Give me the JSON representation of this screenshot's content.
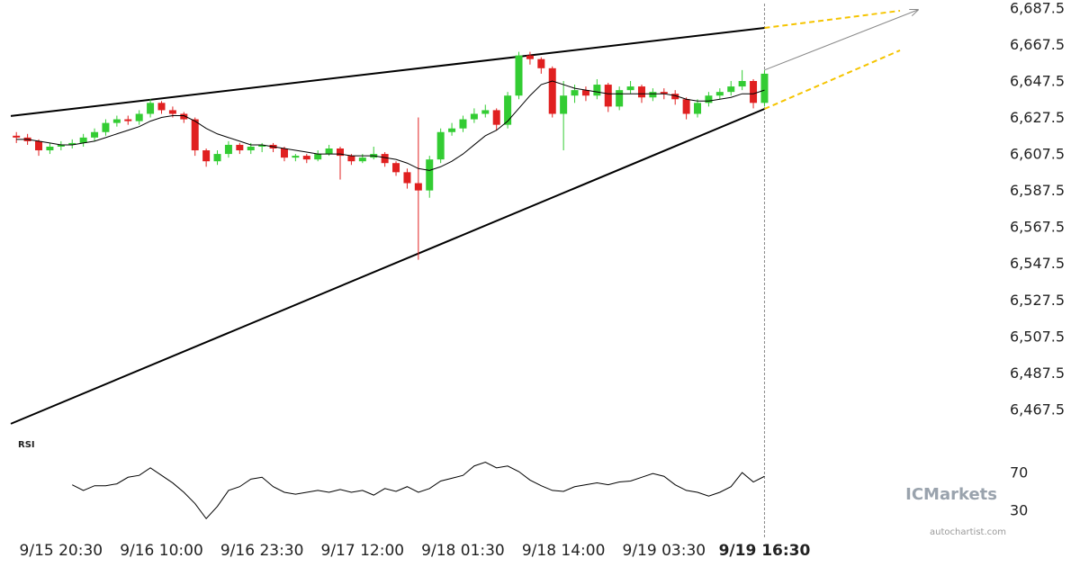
{
  "chart_data": {
    "type": "candlestick",
    "up_color": "#33cc33",
    "down_color": "#e02020",
    "xlim": [
      -6.75,
      126
    ],
    "xticks": [
      {
        "value": 0,
        "label": "9/15 20:30"
      },
      {
        "value": 13.5,
        "label": "9/16 10:00"
      },
      {
        "value": 27,
        "label": "9/16 23:30"
      },
      {
        "value": 40.5,
        "label": "9/17 12:00"
      },
      {
        "value": 54,
        "label": "9/18 01:30"
      },
      {
        "value": 67.5,
        "label": "9/18 14:00"
      },
      {
        "value": 81,
        "label": "9/19 03:30"
      },
      {
        "value": 94.5,
        "label": "9/19 16:30"
      }
    ],
    "ylim": [
      6455.6,
      6692.4
    ],
    "yticks": [
      {
        "value": 6687.5,
        "label": "6,687.5"
      },
      {
        "value": 6667.5,
        "label": "6,667.5"
      },
      {
        "value": 6647.5,
        "label": "6,647.5"
      },
      {
        "value": 6627.5,
        "label": "6,627.5"
      },
      {
        "value": 6607.5,
        "label": "6,607.5"
      },
      {
        "value": 6587.5,
        "label": "6,587.5"
      },
      {
        "value": 6567.5,
        "label": "6,567.5"
      },
      {
        "value": 6547.5,
        "label": "6,547.5"
      },
      {
        "value": 6527.5,
        "label": "6,527.5"
      },
      {
        "value": 6507.5,
        "label": "6,507.5"
      },
      {
        "value": 6487.5,
        "label": "6,487.5"
      },
      {
        "value": 6467.5,
        "label": "6,467.5"
      }
    ],
    "x": [
      -6,
      -4.5,
      -3,
      -1.5,
      0,
      1.5,
      3,
      4.5,
      6,
      7.5,
      9,
      10.5,
      12,
      13.5,
      15,
      16.5,
      18,
      19.5,
      21,
      22.5,
      24,
      25.5,
      27,
      28.5,
      30,
      31.5,
      33,
      34.5,
      36,
      37.5,
      39,
      40.5,
      42,
      43.5,
      45,
      46.5,
      48,
      49.5,
      51,
      52.5,
      54,
      55.5,
      57,
      58.5,
      60,
      61.5,
      63,
      64.5,
      66,
      67.5,
      69,
      70.5,
      72,
      73.5,
      75,
      76.5,
      78,
      79.5,
      81,
      82.5,
      84,
      85.5,
      87,
      88.5,
      90,
      91.5,
      93,
      94.5
    ],
    "open": [
      6618,
      6617,
      6615,
      6610,
      6612,
      6613,
      6614,
      6617,
      6620,
      6625,
      6627,
      6626,
      6630,
      6636,
      6632,
      6630,
      6627,
      6610,
      6604,
      6608,
      6613,
      6610,
      6612,
      6613,
      6611,
      6606,
      6607,
      6605,
      6608,
      6611,
      6607,
      6604,
      6606,
      6608,
      6603,
      6598,
      6592,
      6588,
      6605,
      6620,
      6622,
      6627,
      6630,
      6632,
      6624,
      6640,
      6662,
      6660,
      6655,
      6630,
      6640,
      6643,
      6640,
      6646,
      6634,
      6643,
      6645,
      6639,
      6642,
      6641,
      6638,
      6630,
      6636,
      6640,
      6642,
      6645,
      6648,
      6636
    ],
    "high": [
      6620,
      6619,
      6616,
      6614,
      6615,
      6616,
      6619,
      6622,
      6627,
      6629,
      6629,
      6632,
      6638,
      6637,
      6634,
      6631,
      6628,
      6611,
      6610,
      6615,
      6614,
      6614,
      6614,
      6614,
      6612,
      6608,
      6608,
      6610,
      6613,
      6612,
      6608,
      6608,
      6612,
      6609,
      6604,
      6600,
      6628,
      6607,
      6622,
      6625,
      6629,
      6633,
      6635,
      6633,
      6642,
      6664,
      6664,
      6661,
      6656,
      6648,
      6646,
      6645,
      6649,
      6647,
      6645,
      6648,
      6646,
      6644,
      6644,
      6643,
      6639,
      6638,
      6642,
      6644,
      6648,
      6654,
      6649,
      6654
    ],
    "low": [
      6614,
      6613,
      6607,
      6608,
      6610,
      6611,
      6612,
      6615,
      6618,
      6623,
      6624,
      6624,
      6628,
      6630,
      6628,
      6625,
      6607,
      6601,
      6602,
      6606,
      6608,
      6608,
      6609,
      6609,
      6604,
      6604,
      6603,
      6604,
      6607,
      6594,
      6602,
      6603,
      6605,
      6601,
      6596,
      6589,
      6550,
      6584,
      6603,
      6618,
      6620,
      6625,
      6628,
      6621,
      6622,
      6638,
      6657,
      6652,
      6628,
      6610,
      6636,
      6637,
      6638,
      6631,
      6632,
      6641,
      6636,
      6637,
      6638,
      6635,
      6627,
      6628,
      6634,
      6638,
      6640,
      6643,
      6633,
      6634
    ],
    "close": [
      6617,
      6615,
      6610,
      6612,
      6613,
      6614,
      6617,
      6620,
      6625,
      6627,
      6626,
      6630,
      6636,
      6632,
      6630,
      6627,
      6610,
      6604,
      6608,
      6613,
      6610,
      6612,
      6613,
      6611,
      6606,
      6607,
      6605,
      6608,
      6611,
      6607,
      6604,
      6606,
      6608,
      6603,
      6598,
      6592,
      6588,
      6605,
      6620,
      6622,
      6627,
      6630,
      6632,
      6624,
      6640,
      6662,
      6660,
      6655,
      6630,
      6640,
      6643,
      6640,
      6646,
      6634,
      6643,
      6645,
      6639,
      6642,
      6641,
      6638,
      6630,
      6636,
      6640,
      6642,
      6645,
      6648,
      6636,
      6652
    ],
    "ma": [
      6616,
      6616,
      6615,
      6614,
      6613,
      6613,
      6614,
      6615,
      6617,
      6619,
      6621,
      6623,
      6626,
      6628,
      6629,
      6629,
      6626,
      6622,
      6619,
      6617,
      6615,
      6613,
      6613,
      6612,
      6611,
      6610,
      6609,
      6608,
      6608,
      6608,
      6607,
      6607,
      6607,
      6606,
      6605,
      6603,
      6600,
      6599,
      6601,
      6604,
      6608,
      6613,
      6618,
      6621,
      6626,
      6633,
      6640,
      6646,
      6648,
      6646,
      6644,
      6643,
      6642,
      6641,
      6641,
      6641,
      6641,
      6641,
      6641,
      6640,
      6638,
      6637,
      6637,
      6638,
      6639,
      6641,
      6641,
      6643
    ],
    "trendlines": [
      {
        "x": [
          -6.75,
          94.5
        ],
        "y": [
          6628.8,
          6677.1
        ]
      },
      {
        "x": [
          -6.75,
          94.5
        ],
        "y": [
          6460.1,
          6632.7
        ]
      }
    ],
    "projections": [
      {
        "x": [
          94.5,
          112.7
        ],
        "y": [
          6677.1,
          6686.5
        ]
      },
      {
        "x": [
          94.5,
          112.7
        ],
        "y": [
          6632.7,
          6664.8
        ]
      }
    ],
    "forecast_arrow": {
      "x": [
        94.5,
        115.1
      ],
      "y": [
        6654,
        6687
      ]
    },
    "current_x": 94.5,
    "rsi": {
      "label": "RSI",
      "ylim": [
        5,
        95
      ],
      "yticks": [
        70,
        30
      ],
      "values": [
        null,
        null,
        null,
        null,
        null,
        58,
        52,
        57,
        57,
        59,
        66,
        68,
        76,
        68,
        60,
        50,
        38,
        22,
        35,
        52,
        56,
        64,
        66,
        56,
        50,
        48,
        50,
        52,
        50,
        53,
        50,
        52,
        47,
        54,
        51,
        56,
        50,
        54,
        62,
        65,
        68,
        78,
        82,
        76,
        78,
        72,
        63,
        57,
        52,
        51,
        56,
        58,
        60,
        58,
        61,
        62,
        66,
        70,
        67,
        58,
        52,
        50,
        46,
        50,
        56,
        71,
        61,
        67
      ]
    },
    "brand": "ICMarkets",
    "credit": "autochartist.com"
  }
}
